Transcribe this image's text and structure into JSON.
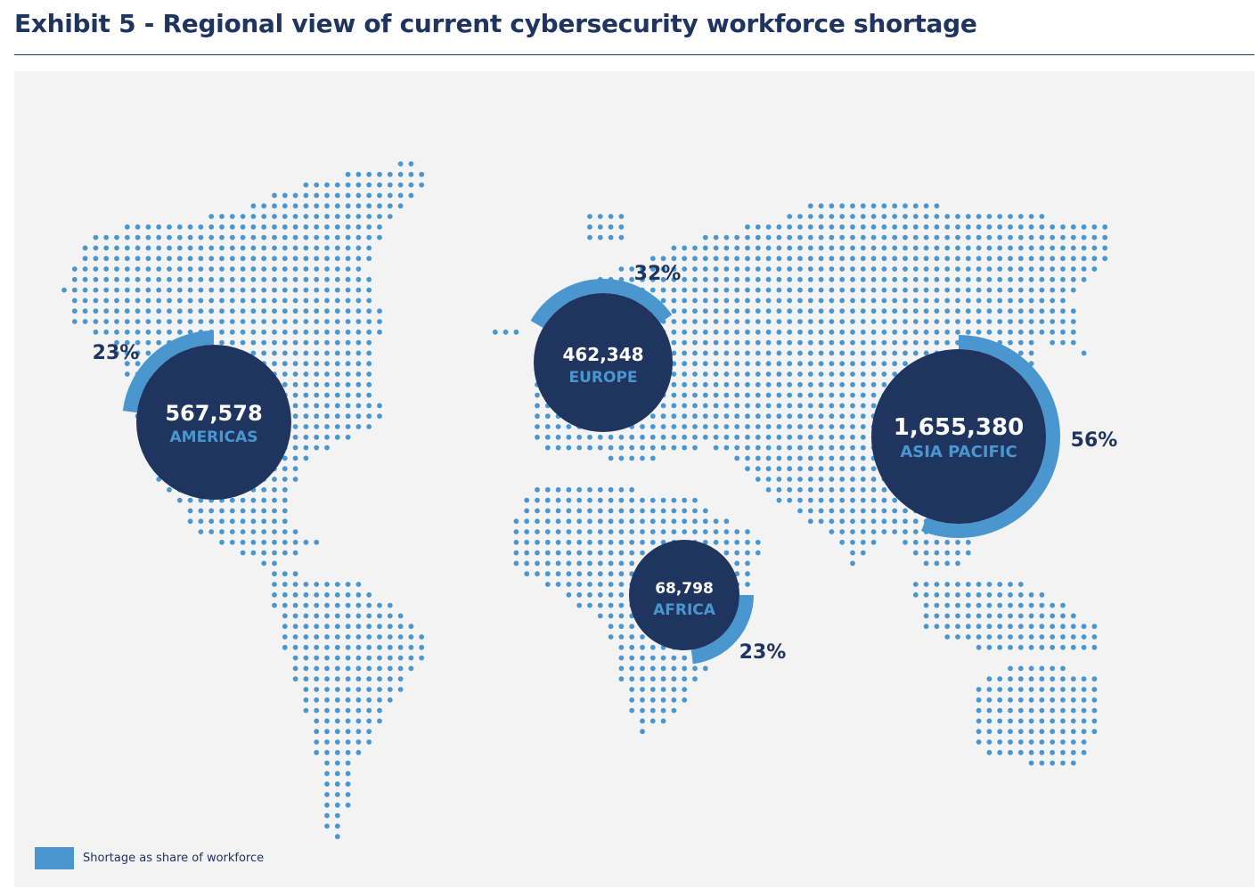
{
  "title": "Exhibit 5 - Regional view of current cybersecurity workforce shortage",
  "legend": {
    "label": "Shortage as share of workforce",
    "color": "#4a97d0"
  },
  "colors": {
    "circle": "#1f3560",
    "ring": "#4a97d0",
    "dots": "#4a97d0",
    "background": "#f3f3f3"
  },
  "chart_data": {
    "type": "bubble-map",
    "regions": [
      {
        "name": "AMERICAS",
        "shortage": 567578,
        "shortage_label": "567,578",
        "share_pct": 23,
        "share_label": "23%"
      },
      {
        "name": "EUROPE",
        "shortage": 462348,
        "shortage_label": "462,348",
        "share_pct": 32,
        "share_label": "32%"
      },
      {
        "name": "AFRICA",
        "shortage": 68798,
        "shortage_label": "68,798",
        "share_pct": 23,
        "share_label": "23%"
      },
      {
        "name": "ASIA PACIFIC",
        "shortage": 1655380,
        "shortage_label": "1,655,380",
        "share_pct": 56,
        "share_label": "56%"
      }
    ]
  }
}
